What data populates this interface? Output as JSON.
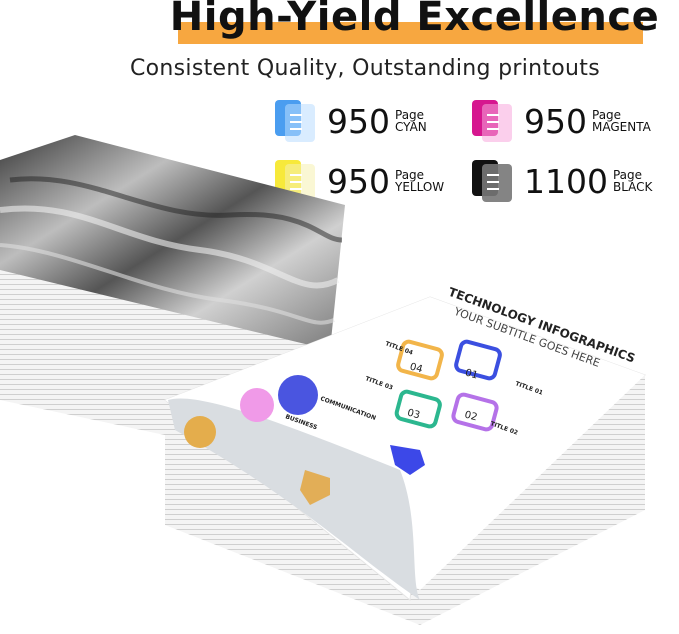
{
  "header": {
    "title": "High-Yield Excellence",
    "subtitle": "Consistent Quality, Outstanding printouts",
    "highlight_color": "#f7a740"
  },
  "yields": [
    {
      "value": "950",
      "unit": "Page",
      "color_name": "CYAN",
      "color": "#4a9df0",
      "icon": "document-pages-icon"
    },
    {
      "value": "950",
      "unit": "Page",
      "color_name": "MAGENTA",
      "color": "#d6168f",
      "icon": "document-pages-icon"
    },
    {
      "value": "950",
      "unit": "Page",
      "color_name": "YELLOW",
      "color": "#f7e93a",
      "icon": "document-pages-icon"
    },
    {
      "value": "1100",
      "unit": "Page",
      "color_name": "BLACK",
      "color": "#111111",
      "icon": "document-pages-icon"
    }
  ],
  "printout": {
    "title": "TECHNOLOGY INFOGRAPHICS",
    "subtitle": "YOUR SUBTITLE GOES HERE",
    "steps": [
      "01",
      "02",
      "03",
      "04"
    ],
    "labels": [
      "TITLE 01",
      "TITLE 02",
      "TITLE 03",
      "TITLE 04",
      "COMMUNICATION",
      "BUSINESS"
    ]
  }
}
